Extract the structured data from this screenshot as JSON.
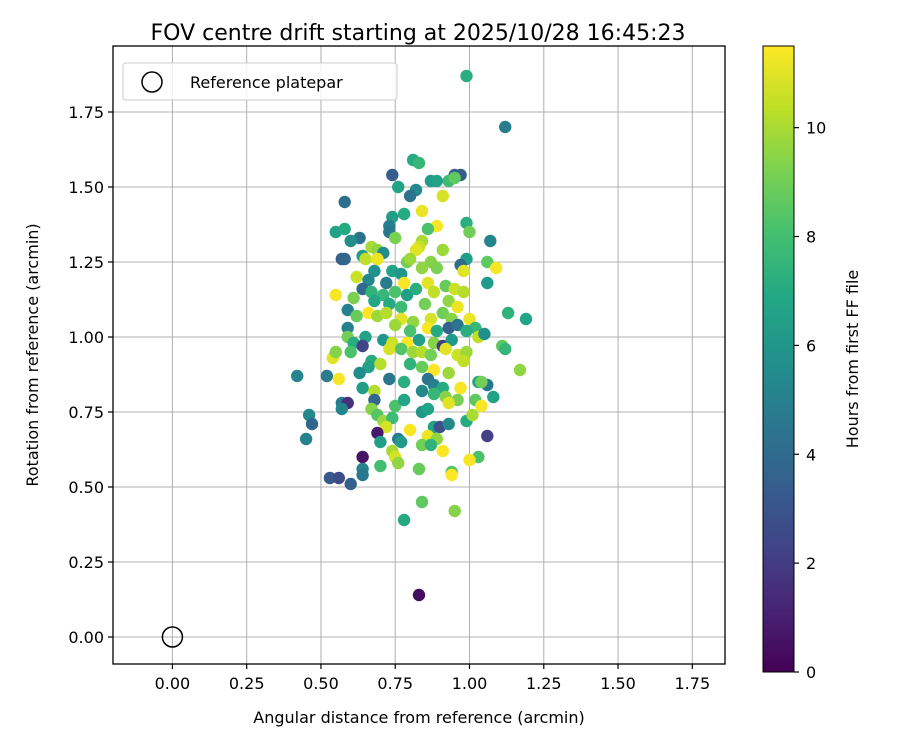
{
  "chart_data": {
    "type": "scatter",
    "title": "FOV centre drift starting at 2025/10/28 16:45:23",
    "xlabel": "Angular distance from reference (arcmin)",
    "ylabel": "Rotation from reference (arcmin)",
    "xlim": [
      -0.2,
      1.86
    ],
    "ylim": [
      -0.09,
      1.97
    ],
    "xticks": [
      0.0,
      0.25,
      0.5,
      0.75,
      1.0,
      1.25,
      1.5,
      1.75
    ],
    "xtick_labels": [
      "0.00",
      "0.25",
      "0.50",
      "0.75",
      "1.00",
      "1.25",
      "1.50",
      "1.75"
    ],
    "yticks": [
      0.0,
      0.25,
      0.5,
      0.75,
      1.0,
      1.25,
      1.5,
      1.75
    ],
    "ytick_labels": [
      "0.00",
      "0.25",
      "0.50",
      "0.75",
      "1.00",
      "1.25",
      "1.50",
      "1.75"
    ],
    "grid": true,
    "legend": {
      "position": "top-left",
      "entries": [
        {
          "marker": "open-circle",
          "label": "Reference platepar"
        }
      ]
    },
    "reference_point": {
      "x": 0.0,
      "y": 0.0
    },
    "colorbar": {
      "label": "Hours from first FF file",
      "colormap": "viridis",
      "range": [
        0,
        11.5
      ],
      "ticks": [
        0,
        2,
        4,
        6,
        8,
        10
      ],
      "tick_labels": [
        "0",
        "2",
        "4",
        "6",
        "8",
        "10"
      ]
    },
    "series": [
      {
        "name": "FOV centre (x=distance, y=rotation, c=hours)",
        "points": [
          [
            0.99,
            1.87,
            7.2
          ],
          [
            1.12,
            1.7,
            4.8
          ],
          [
            0.81,
            1.59,
            7.0
          ],
          [
            0.83,
            1.58,
            7.6
          ],
          [
            0.95,
            1.54,
            3.6
          ],
          [
            0.97,
            1.54,
            3.4
          ],
          [
            0.74,
            1.54,
            3.4
          ],
          [
            0.93,
            1.52,
            7.8
          ],
          [
            0.95,
            1.53,
            8.6
          ],
          [
            0.87,
            1.52,
            6.2
          ],
          [
            0.89,
            1.52,
            6.6
          ],
          [
            0.82,
            1.49,
            5.4
          ],
          [
            0.8,
            1.47,
            4.4
          ],
          [
            0.76,
            1.5,
            6.6
          ],
          [
            0.58,
            1.45,
            4.2
          ],
          [
            0.91,
            1.47,
            10.8
          ],
          [
            0.84,
            1.42,
            11.2
          ],
          [
            0.78,
            1.41,
            7.0
          ],
          [
            0.74,
            1.4,
            6.4
          ],
          [
            0.99,
            1.38,
            7.2
          ],
          [
            0.89,
            1.37,
            11.4
          ],
          [
            0.86,
            1.36,
            8.2
          ],
          [
            0.73,
            1.37,
            5.0
          ],
          [
            0.55,
            1.35,
            6.6
          ],
          [
            0.58,
            1.36,
            7.0
          ],
          [
            0.73,
            1.35,
            4.6
          ],
          [
            0.63,
            1.33,
            4.4
          ],
          [
            1.0,
            1.35,
            9.0
          ],
          [
            1.07,
            1.32,
            5.2
          ],
          [
            0.6,
            1.32,
            5.6
          ],
          [
            0.75,
            1.33,
            9.2
          ],
          [
            0.84,
            1.32,
            10.0
          ],
          [
            0.83,
            1.3,
            10.6
          ],
          [
            0.82,
            1.29,
            11.0
          ],
          [
            0.67,
            1.3,
            10.0
          ],
          [
            0.69,
            1.29,
            9.6
          ],
          [
            0.71,
            1.28,
            5.6
          ],
          [
            0.64,
            1.27,
            6.2
          ],
          [
            0.57,
            1.26,
            3.4
          ],
          [
            0.58,
            1.26,
            3.8
          ],
          [
            0.65,
            1.26,
            10.4
          ],
          [
            0.69,
            1.26,
            11.2
          ],
          [
            0.79,
            1.25,
            9.0
          ],
          [
            0.8,
            1.26,
            9.8
          ],
          [
            0.87,
            1.25,
            9.4
          ],
          [
            0.91,
            1.29,
            9.8
          ],
          [
            0.99,
            1.26,
            6.4
          ],
          [
            1.06,
            1.25,
            8.6
          ],
          [
            0.97,
            1.24,
            4.0
          ],
          [
            1.09,
            1.23,
            11.4
          ],
          [
            0.68,
            1.22,
            5.8
          ],
          [
            0.74,
            1.22,
            6.6
          ],
          [
            0.77,
            1.21,
            6.0
          ],
          [
            0.84,
            1.23,
            9.6
          ],
          [
            0.89,
            1.23,
            9.2
          ],
          [
            0.98,
            1.22,
            11.0
          ],
          [
            0.62,
            1.2,
            10.6
          ],
          [
            0.66,
            1.19,
            5.4
          ],
          [
            0.72,
            1.18,
            4.8
          ],
          [
            0.78,
            1.18,
            11.4
          ],
          [
            0.86,
            1.18,
            11.0
          ],
          [
            0.92,
            1.17,
            8.8
          ],
          [
            0.64,
            1.16,
            4.0
          ],
          [
            0.67,
            1.15,
            7.4
          ],
          [
            0.71,
            1.14,
            7.6
          ],
          [
            0.75,
            1.15,
            8.2
          ],
          [
            0.79,
            1.14,
            6.4
          ],
          [
            0.82,
            1.16,
            7.2
          ],
          [
            0.88,
            1.15,
            10.4
          ],
          [
            0.95,
            1.16,
            10.6
          ],
          [
            0.98,
            1.15,
            10.2
          ],
          [
            1.06,
            1.18,
            6.2
          ],
          [
            0.55,
            1.14,
            11.4
          ],
          [
            0.61,
            1.13,
            9.2
          ],
          [
            0.68,
            1.12,
            6.8
          ],
          [
            0.73,
            1.11,
            7.0
          ],
          [
            0.77,
            1.1,
            7.8
          ],
          [
            0.85,
            1.11,
            9.0
          ],
          [
            0.93,
            1.12,
            9.6
          ],
          [
            0.96,
            1.1,
            11.2
          ],
          [
            1.13,
            1.08,
            7.4
          ],
          [
            1.19,
            1.06,
            6.8
          ],
          [
            0.59,
            1.09,
            5.0
          ],
          [
            0.66,
            1.08,
            11.6
          ],
          [
            0.69,
            1.07,
            9.8
          ],
          [
            0.72,
            1.08,
            10.2
          ],
          [
            0.77,
            1.06,
            11.0
          ],
          [
            0.81,
            1.05,
            9.6
          ],
          [
            0.87,
            1.06,
            10.8
          ],
          [
            0.91,
            1.08,
            9.0
          ],
          [
            0.94,
            1.06,
            9.4
          ],
          [
            1.0,
            1.06,
            11.2
          ],
          [
            1.02,
            1.03,
            7.6
          ],
          [
            0.62,
            1.07,
            8.8
          ],
          [
            0.75,
            1.04,
            9.8
          ],
          [
            0.8,
            1.02,
            8.2
          ],
          [
            0.86,
            1.03,
            11.4
          ],
          [
            0.89,
            1.02,
            7.0
          ],
          [
            0.93,
            1.03,
            3.6
          ],
          [
            0.96,
            1.04,
            4.4
          ],
          [
            0.99,
            1.02,
            7.2
          ],
          [
            1.03,
            1.0,
            10.4
          ],
          [
            1.05,
            1.01,
            5.6
          ],
          [
            0.59,
            1.03,
            5.0
          ],
          [
            0.65,
            1.0,
            6.6
          ],
          [
            0.71,
            0.99,
            6.0
          ],
          [
            0.74,
            0.98,
            10.6
          ],
          [
            0.79,
            0.98,
            11.6
          ],
          [
            0.83,
            0.99,
            6.4
          ],
          [
            0.88,
            0.98,
            9.4
          ],
          [
            0.91,
            0.97,
            2.0
          ],
          [
            0.94,
            0.99,
            6.2
          ],
          [
            0.59,
            1.0,
            9.0
          ],
          [
            0.61,
            0.98,
            7.2
          ],
          [
            0.64,
            0.97,
            2.4
          ],
          [
            0.73,
            0.96,
            10.8
          ],
          [
            0.77,
            0.96,
            8.4
          ],
          [
            0.81,
            0.95,
            9.8
          ],
          [
            0.84,
            0.95,
            10.2
          ],
          [
            0.87,
            0.94,
            9.0
          ],
          [
            0.92,
            0.96,
            11.0
          ],
          [
            0.96,
            0.94,
            10.6
          ],
          [
            0.99,
            0.95,
            9.8
          ],
          [
            1.11,
            0.97,
            8.6
          ],
          [
            1.12,
            0.96,
            7.6
          ],
          [
            0.54,
            0.93,
            11.0
          ],
          [
            0.55,
            0.95,
            9.4
          ],
          [
            0.6,
            0.95,
            8.2
          ],
          [
            0.67,
            0.92,
            7.0
          ],
          [
            0.7,
            0.91,
            10.2
          ],
          [
            0.8,
            0.91,
            7.4
          ],
          [
            0.84,
            0.9,
            8.8
          ],
          [
            0.88,
            0.89,
            11.6
          ],
          [
            0.93,
            0.88,
            9.8
          ],
          [
            0.98,
            0.92,
            10.4
          ],
          [
            1.17,
            0.89,
            9.6
          ],
          [
            0.66,
            0.9,
            6.6
          ],
          [
            0.63,
            0.88,
            5.6
          ],
          [
            0.42,
            0.87,
            5.2
          ],
          [
            0.52,
            0.87,
            4.8
          ],
          [
            0.56,
            0.86,
            11.4
          ],
          [
            0.73,
            0.86,
            4.6
          ],
          [
            0.78,
            0.85,
            7.2
          ],
          [
            0.86,
            0.86,
            4.4
          ],
          [
            0.88,
            0.84,
            5.0
          ],
          [
            0.91,
            0.83,
            7.0
          ],
          [
            0.97,
            0.83,
            11.4
          ],
          [
            1.03,
            0.85,
            6.8
          ],
          [
            1.06,
            0.84,
            4.6
          ],
          [
            1.04,
            0.85,
            9.0
          ],
          [
            0.64,
            0.83,
            6.4
          ],
          [
            0.68,
            0.82,
            10.2
          ],
          [
            0.84,
            0.82,
            5.4
          ],
          [
            0.88,
            0.81,
            7.6
          ],
          [
            0.92,
            0.8,
            9.4
          ],
          [
            0.96,
            0.79,
            9.2
          ],
          [
            1.02,
            0.79,
            8.6
          ],
          [
            1.08,
            0.8,
            6.6
          ],
          [
            0.57,
            0.78,
            4.8
          ],
          [
            0.59,
            0.78,
            1.6
          ],
          [
            0.68,
            0.79,
            3.8
          ],
          [
            0.75,
            0.77,
            8.2
          ],
          [
            0.78,
            0.79,
            6.8
          ],
          [
            0.93,
            0.78,
            11.0
          ],
          [
            1.04,
            0.77,
            11.4
          ],
          [
            0.46,
            0.74,
            5.4
          ],
          [
            0.57,
            0.76,
            5.2
          ],
          [
            0.67,
            0.76,
            9.4
          ],
          [
            0.69,
            0.74,
            8.4
          ],
          [
            0.71,
            0.72,
            9.8
          ],
          [
            0.74,
            0.73,
            7.8
          ],
          [
            0.84,
            0.75,
            6.0
          ],
          [
            0.86,
            0.76,
            6.6
          ],
          [
            0.99,
            0.72,
            7.0
          ],
          [
            1.01,
            0.74,
            10.0
          ],
          [
            0.47,
            0.71,
            3.8
          ],
          [
            0.72,
            0.7,
            10.8
          ],
          [
            0.8,
            0.69,
            11.4
          ],
          [
            0.88,
            0.7,
            6.6
          ],
          [
            0.9,
            0.7,
            2.8
          ],
          [
            0.93,
            0.71,
            5.4
          ],
          [
            0.69,
            0.68,
            0.8
          ],
          [
            0.86,
            0.67,
            11.2
          ],
          [
            0.89,
            0.66,
            9.6
          ],
          [
            0.76,
            0.66,
            4.8
          ],
          [
            1.06,
            0.67,
            2.2
          ],
          [
            0.45,
            0.66,
            5.0
          ],
          [
            0.7,
            0.65,
            6.4
          ],
          [
            0.77,
            0.65,
            6.2
          ],
          [
            0.84,
            0.64,
            9.0
          ],
          [
            0.87,
            0.64,
            7.4
          ],
          [
            0.91,
            0.62,
            11.6
          ],
          [
            0.74,
            0.62,
            10.0
          ],
          [
            0.75,
            0.6,
            10.8
          ],
          [
            0.64,
            0.6,
            0.6
          ],
          [
            1.03,
            0.6,
            8.2
          ],
          [
            1.0,
            0.59,
            11.4
          ],
          [
            0.76,
            0.58,
            9.6
          ],
          [
            0.7,
            0.57,
            8.0
          ],
          [
            0.64,
            0.56,
            5.2
          ],
          [
            0.64,
            0.54,
            4.6
          ],
          [
            0.83,
            0.56,
            8.8
          ],
          [
            0.94,
            0.55,
            8.4
          ],
          [
            0.94,
            0.54,
            11.6
          ],
          [
            0.53,
            0.53,
            3.2
          ],
          [
            0.56,
            0.53,
            2.6
          ],
          [
            0.6,
            0.51,
            3.6
          ],
          [
            0.84,
            0.45,
            8.6
          ],
          [
            0.95,
            0.42,
            9.4
          ],
          [
            0.78,
            0.39,
            7.0
          ],
          [
            0.83,
            0.14,
            0.4
          ]
        ]
      }
    ]
  }
}
